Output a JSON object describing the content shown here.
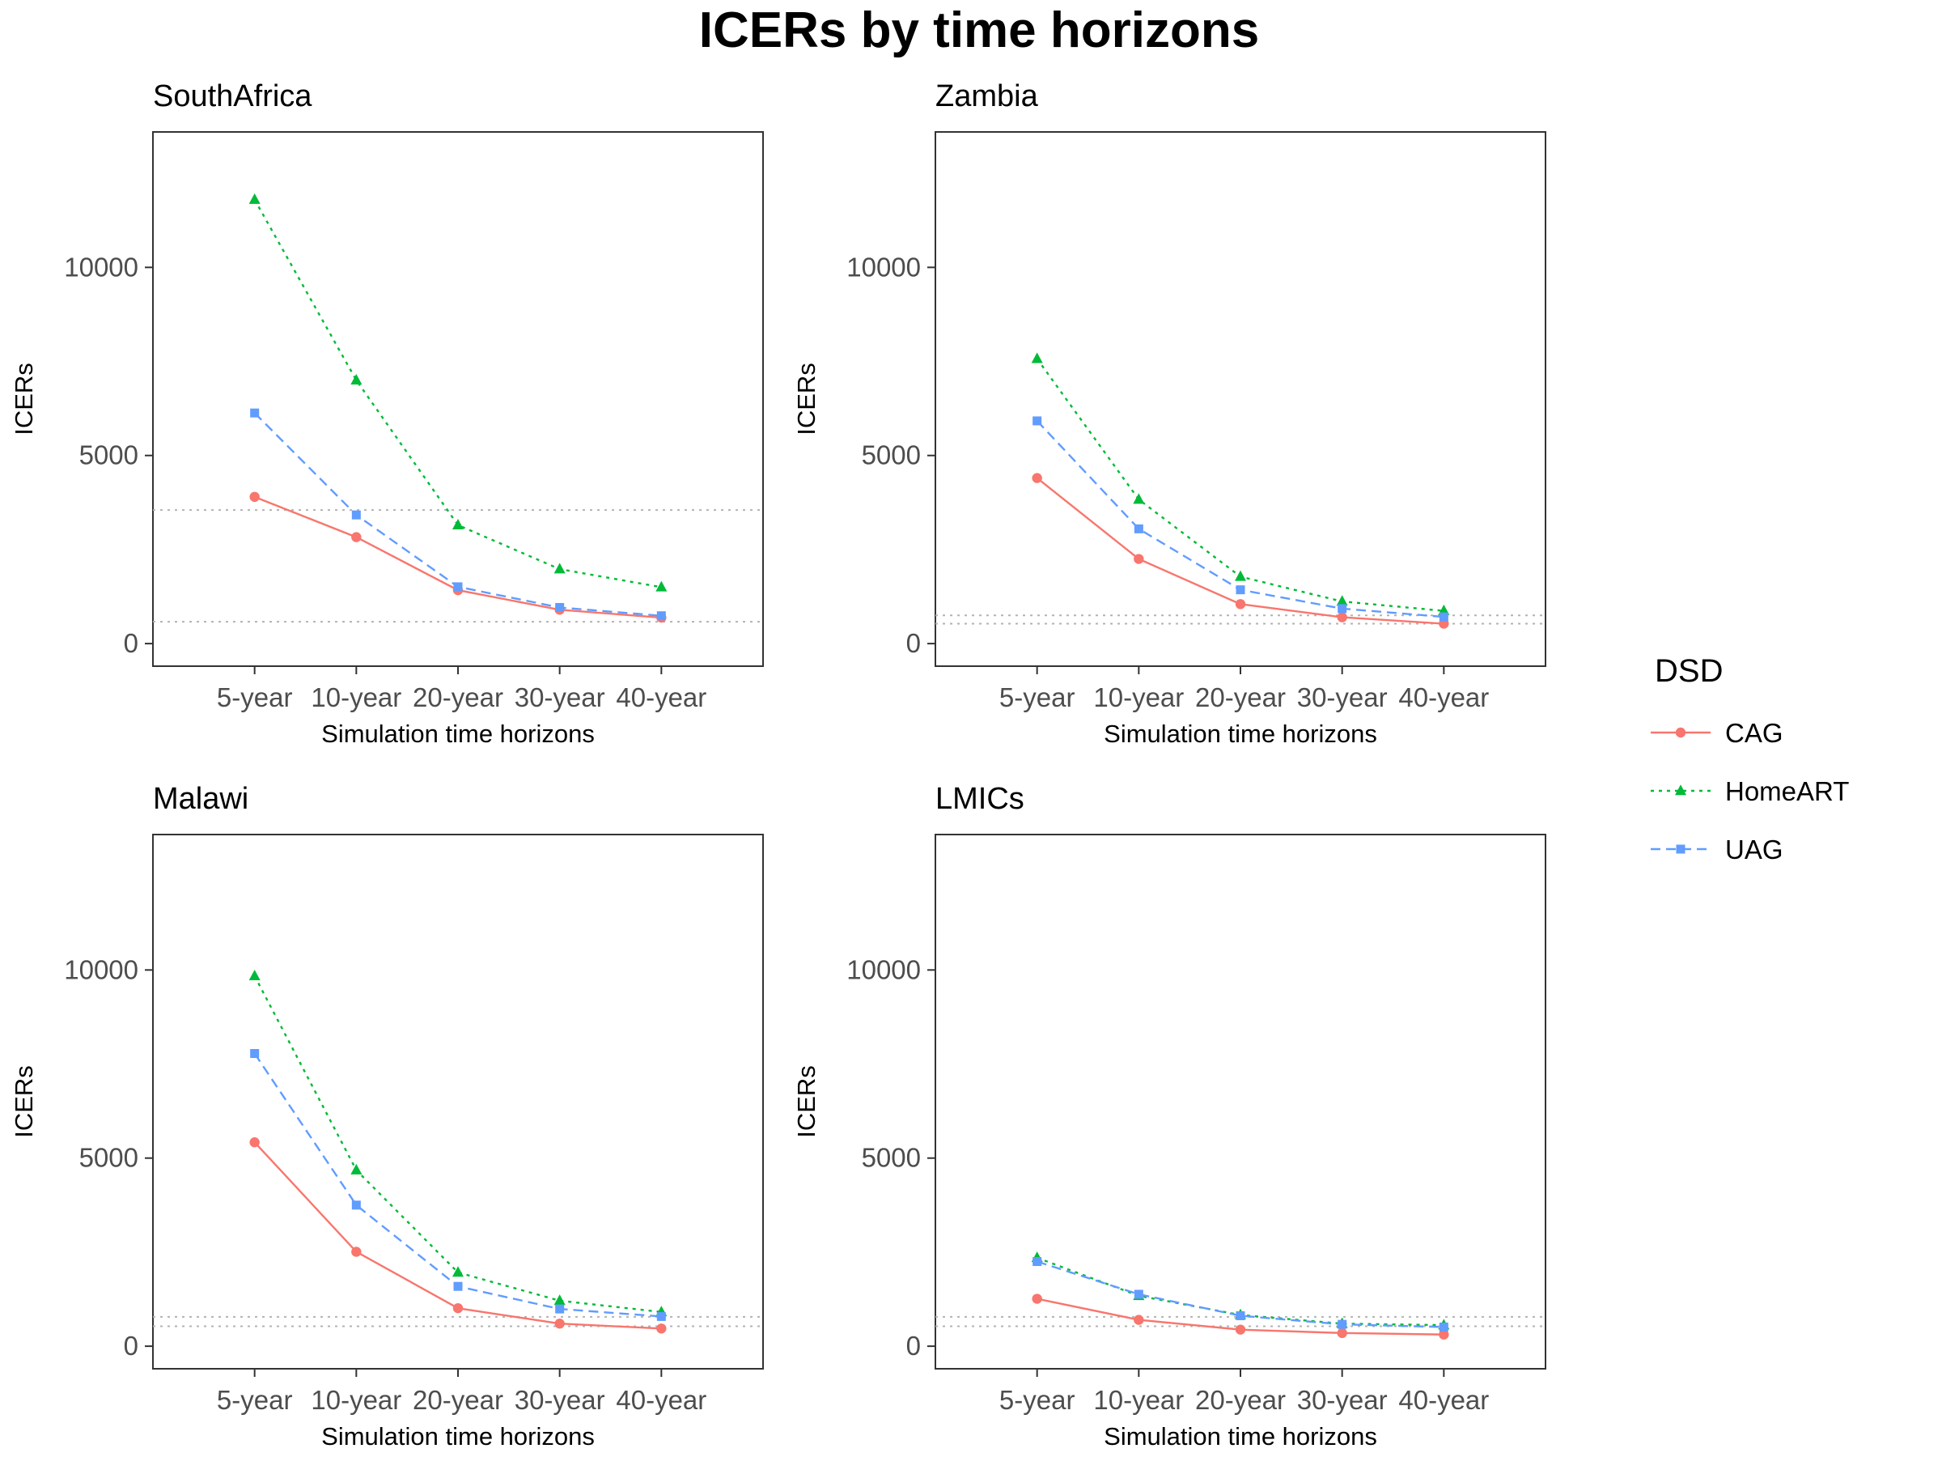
{
  "chart_data": {
    "type": "line",
    "title": "ICERs by time horizons",
    "xlabel": "Simulation time horizons",
    "ylabel": "ICERs",
    "categories": [
      "5-year",
      "10-year",
      "20-year",
      "30-year",
      "40-year"
    ],
    "ylim": [
      -600,
      13600
    ],
    "yticks": [
      0,
      5000,
      10000
    ],
    "grid": false,
    "legend": {
      "title": "DSD",
      "placement": "right",
      "entries": [
        {
          "name": "CAG",
          "color": "#F8766D",
          "shape": "circle",
          "dash": "solid"
        },
        {
          "name": "HomeART",
          "color": "#00BA38",
          "shape": "triangle",
          "dash": "dotted"
        },
        {
          "name": "UAG",
          "color": "#619CFF",
          "shape": "square",
          "dash": "dashed"
        }
      ]
    },
    "panels": [
      {
        "title": "SouthAfrica",
        "reference_lines": [
          3550,
          580
        ],
        "series": [
          {
            "name": "CAG",
            "values": [
              3900,
              2830,
              1420,
              900,
              690
            ]
          },
          {
            "name": "HomeART",
            "values": [
              11800,
              7000,
              3150,
              1980,
              1500
            ]
          },
          {
            "name": "UAG",
            "values": [
              6130,
              3420,
              1510,
              960,
              740
            ]
          }
        ]
      },
      {
        "title": "Zambia",
        "reference_lines": [
          750,
          530
        ],
        "series": [
          {
            "name": "CAG",
            "values": [
              4400,
              2250,
              1050,
              700,
              530
            ]
          },
          {
            "name": "HomeART",
            "values": [
              7570,
              3830,
              1780,
              1120,
              870
            ]
          },
          {
            "name": "UAG",
            "values": [
              5920,
              3050,
              1430,
              930,
              710
            ]
          }
        ]
      },
      {
        "title": "Malawi",
        "reference_lines": [
          780,
          530
        ],
        "series": [
          {
            "name": "CAG",
            "values": [
              5420,
              2510,
              1010,
              600,
              470
            ]
          },
          {
            "name": "HomeART",
            "values": [
              9840,
              4680,
              1960,
              1210,
              910
            ]
          },
          {
            "name": "UAG",
            "values": [
              7780,
              3750,
              1590,
              990,
              790
            ]
          }
        ]
      },
      {
        "title": "LMICs",
        "reference_lines": [
          780,
          530
        ],
        "series": [
          {
            "name": "CAG",
            "values": [
              1260,
              700,
              440,
              350,
              310
            ]
          },
          {
            "name": "HomeART",
            "values": [
              2350,
              1340,
              830,
              600,
              560
            ]
          },
          {
            "name": "UAG",
            "values": [
              2250,
              1380,
              810,
              580,
              510
            ]
          }
        ]
      }
    ]
  }
}
